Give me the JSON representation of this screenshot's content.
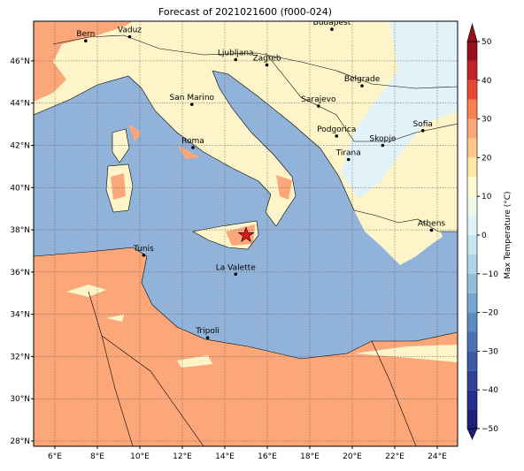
{
  "title": "Forecast of 2021021600 (f000-024)",
  "map": {
    "lon_range": [
      5,
      25
    ],
    "lat_range": [
      27.75,
      47.88
    ],
    "lon_ticks": [
      {
        "value": 6,
        "label": "6°E"
      },
      {
        "value": 8,
        "label": "8°E"
      },
      {
        "value": 10,
        "label": "10°E"
      },
      {
        "value": 12,
        "label": "12°E"
      },
      {
        "value": 14,
        "label": "14°E"
      },
      {
        "value": 16,
        "label": "16°E"
      },
      {
        "value": 18,
        "label": "18°E"
      },
      {
        "value": 20,
        "label": "20°E"
      },
      {
        "value": 22,
        "label": "22°E"
      },
      {
        "value": 24,
        "label": "24°E"
      }
    ],
    "lat_ticks": [
      {
        "value": 28,
        "label": "28°N"
      },
      {
        "value": 30,
        "label": "30°N"
      },
      {
        "value": 32,
        "label": "32°N"
      },
      {
        "value": 34,
        "label": "34°N"
      },
      {
        "value": 36,
        "label": "36°N"
      },
      {
        "value": 38,
        "label": "38°N"
      },
      {
        "value": 40,
        "label": "40°N"
      },
      {
        "value": 42,
        "label": "42°N"
      },
      {
        "value": 44,
        "label": "44°N"
      },
      {
        "value": 46,
        "label": "46°N"
      }
    ],
    "grid": true,
    "cities": [
      {
        "name": "Bern",
        "lon": 7.45,
        "lat": 46.95
      },
      {
        "name": "Vaduz",
        "lon": 9.52,
        "lat": 47.14
      },
      {
        "name": "Budapest",
        "lon": 19.04,
        "lat": 47.5
      },
      {
        "name": "Ljubljana",
        "lon": 14.51,
        "lat": 46.06
      },
      {
        "name": "Zagreb",
        "lon": 15.98,
        "lat": 45.81
      },
      {
        "name": "Belgrade",
        "lon": 20.46,
        "lat": 44.82
      },
      {
        "name": "San Marino",
        "lon": 12.45,
        "lat": 43.94
      },
      {
        "name": "Sarajevo",
        "lon": 18.41,
        "lat": 43.86
      },
      {
        "name": "Sofia",
        "lon": 23.32,
        "lat": 42.7
      },
      {
        "name": "Podgorica",
        "lon": 19.26,
        "lat": 42.44
      },
      {
        "name": "Skopje",
        "lon": 21.43,
        "lat": 42.0
      },
      {
        "name": "Roma",
        "lon": 12.5,
        "lat": 41.9
      },
      {
        "name": "Tirana",
        "lon": 19.82,
        "lat": 41.33
      },
      {
        "name": "Athens",
        "lon": 23.73,
        "lat": 37.98
      },
      {
        "name": "Tunis",
        "lon": 10.18,
        "lat": 36.8
      },
      {
        "name": "La Valette",
        "lon": 14.51,
        "lat": 35.9
      },
      {
        "name": "Tripoli",
        "lon": 13.19,
        "lat": 32.89
      }
    ],
    "star": {
      "lon": 15.0,
      "lat": 37.75,
      "color": "#e8141c"
    }
  },
  "colorbar": {
    "label": "Max Temperature (°C)",
    "range": [
      -50,
      50
    ],
    "ticks": [
      {
        "value": -50,
        "label": "−50"
      },
      {
        "value": -40,
        "label": "−40"
      },
      {
        "value": -30,
        "label": "−30"
      },
      {
        "value": -20,
        "label": "−20"
      },
      {
        "value": -10,
        "label": "−10"
      },
      0,
      10,
      20,
      30,
      40,
      50
    ],
    "levels": [
      -50,
      -45,
      -40,
      -35,
      -30,
      -25,
      -20,
      -15,
      -10,
      -5,
      0,
      5,
      10,
      15,
      20,
      25,
      30,
      35,
      40,
      45,
      50
    ],
    "colors": [
      "#1d1f7a",
      "#26308c",
      "#2f4297",
      "#3a5aa6",
      "#4a73b3",
      "#5b8bc2",
      "#74a6d0",
      "#92bddb",
      "#aed6e8",
      "#c8e6f0",
      "#e0f3f8",
      "#f0f9e6",
      "#fffbd0",
      "#fee9a6",
      "#fdc888",
      "#fca779",
      "#f6804f",
      "#e64a33",
      "#c4212a",
      "#990f1d"
    ]
  }
}
